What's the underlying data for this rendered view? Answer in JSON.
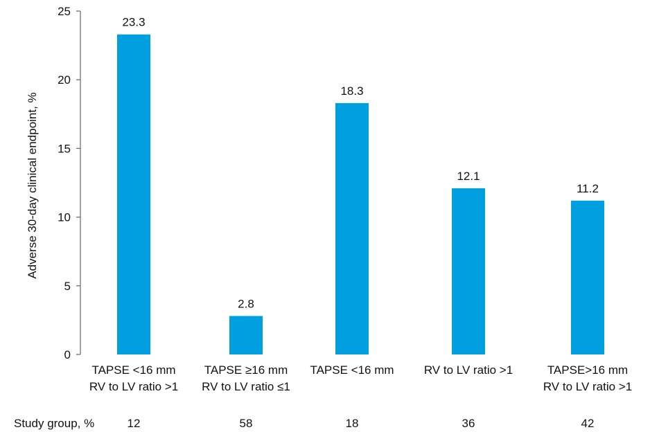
{
  "chart_data": {
    "type": "bar",
    "title": "",
    "xlabel": "",
    "ylabel": "Adverse 30-day clinical endpoint, %",
    "ylim": [
      0,
      25
    ],
    "yticks": [
      0,
      5,
      10,
      15,
      20,
      25
    ],
    "grid": false,
    "bar_color": "#009FDF",
    "categories": [
      [
        "TAPSE <16 mm",
        "RV to LV ratio >1"
      ],
      [
        "TAPSE ≥16 mm",
        "RV to LV ratio ≤1"
      ],
      [
        "TAPSE <16 mm"
      ],
      [
        "RV to LV ratio >1"
      ],
      [
        "TAPSE>16 mm",
        "RV to LV ratio >1"
      ]
    ],
    "values": [
      23.3,
      2.8,
      18.3,
      12.1,
      11.2
    ],
    "value_labels": [
      "23.3",
      "2.8",
      "18.3",
      "12.1",
      "11.2"
    ],
    "study_group": {
      "label": "Study group, %",
      "values": [
        "12",
        "58",
        "18",
        "36",
        "42"
      ]
    }
  }
}
